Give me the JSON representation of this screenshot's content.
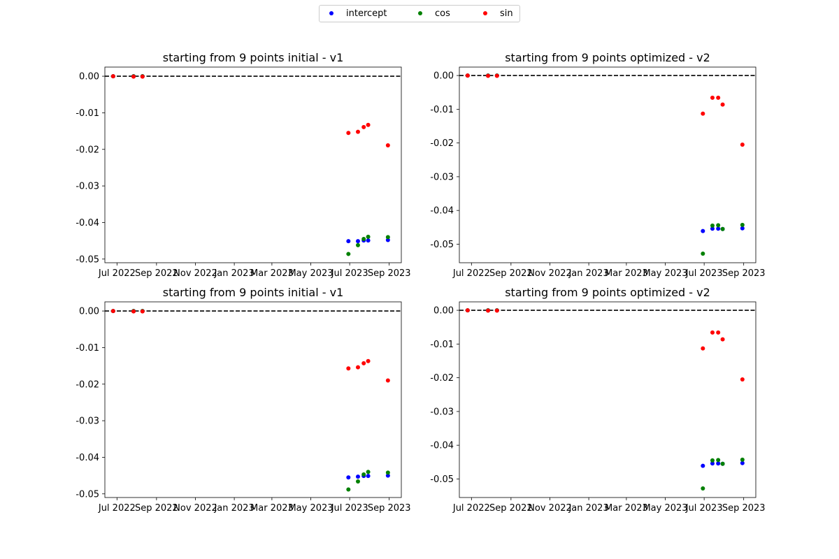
{
  "legend": {
    "placement": "top-center",
    "entries": [
      {
        "name": "intercept",
        "color": "#0000ff"
      },
      {
        "name": "cos",
        "color": "#008000"
      },
      {
        "name": "sin",
        "color": "#ff0000"
      }
    ]
  },
  "chart_data": [
    {
      "type": "scatter",
      "title": "starting from 9 points initial - v1",
      "xlabel": "",
      "ylabel": "",
      "x_ticks": [
        "Jul 2022",
        "Sep 2022",
        "Nov 2022",
        "Jan 2023",
        "Mar 2023",
        "May 2023",
        "Jul 2023",
        "Sep 2023"
      ],
      "x_range": [
        "2022-06-12",
        "2023-09-20"
      ],
      "ylim": [
        -0.051,
        0.0025
      ],
      "y_ticks": [
        "0.00",
        "-0.01",
        "-0.02",
        "-0.03",
        "-0.04",
        "-0.05"
      ],
      "reference_line": {
        "y": 0,
        "style": "dashed",
        "color": "#000000"
      },
      "grid": false,
      "series": [
        {
          "name": "intercept",
          "color": "#0000ff",
          "points": [
            [
              "2022-06-25",
              0
            ],
            [
              "2022-07-27",
              0
            ],
            [
              "2022-08-10",
              0
            ],
            [
              "2023-06-29",
              -0.0451
            ],
            [
              "2023-07-14",
              -0.0451
            ],
            [
              "2023-07-23",
              -0.0449
            ],
            [
              "2023-07-30",
              -0.0449
            ],
            [
              "2023-08-30",
              -0.0448
            ]
          ]
        },
        {
          "name": "cos",
          "color": "#008000",
          "points": [
            [
              "2022-06-25",
              0
            ],
            [
              "2022-07-27",
              0
            ],
            [
              "2022-08-10",
              0
            ],
            [
              "2023-06-29",
              -0.0486
            ],
            [
              "2023-07-14",
              -0.0462
            ],
            [
              "2023-07-23",
              -0.0445
            ],
            [
              "2023-07-30",
              -0.0439
            ],
            [
              "2023-08-30",
              -0.044
            ]
          ]
        },
        {
          "name": "sin",
          "color": "#ff0000",
          "points": [
            [
              "2022-06-25",
              0
            ],
            [
              "2022-07-27",
              -0.0001
            ],
            [
              "2022-08-10",
              -0.0001
            ],
            [
              "2023-06-29",
              -0.0155
            ],
            [
              "2023-07-14",
              -0.0152
            ],
            [
              "2023-07-23",
              -0.0139
            ],
            [
              "2023-07-30",
              -0.0133
            ],
            [
              "2023-08-30",
              -0.0189
            ]
          ]
        }
      ]
    },
    {
      "type": "scatter",
      "title": "starting from 9 points optimized - v2",
      "xlabel": "",
      "ylabel": "",
      "x_ticks": [
        "Jul 2022",
        "Sep 2022",
        "Nov 2022",
        "Jan 2023",
        "Mar 2023",
        "May 2023",
        "Jul 2023",
        "Sep 2023"
      ],
      "x_range": [
        "2022-06-12",
        "2023-09-20"
      ],
      "ylim": [
        -0.0555,
        0.0025
      ],
      "y_ticks": [
        "0.00",
        "-0.01",
        "-0.02",
        "-0.03",
        "-0.04",
        "-0.05"
      ],
      "reference_line": {
        "y": 0,
        "style": "dashed",
        "color": "#000000"
      },
      "grid": false,
      "series": [
        {
          "name": "intercept",
          "color": "#0000ff",
          "points": [
            [
              "2022-06-25",
              0
            ],
            [
              "2022-07-27",
              0
            ],
            [
              "2022-08-10",
              0
            ],
            [
              "2023-06-29",
              -0.0461
            ],
            [
              "2023-07-14",
              -0.0454
            ],
            [
              "2023-07-23",
              -0.0454
            ],
            [
              "2023-07-30",
              -0.0455
            ],
            [
              "2023-08-30",
              -0.0453
            ]
          ]
        },
        {
          "name": "cos",
          "color": "#008000",
          "points": [
            [
              "2022-06-25",
              0
            ],
            [
              "2022-07-27",
              0
            ],
            [
              "2022-08-10",
              0
            ],
            [
              "2023-06-29",
              -0.0528
            ],
            [
              "2023-07-14",
              -0.0445
            ],
            [
              "2023-07-23",
              -0.0444
            ],
            [
              "2023-07-30",
              -0.0455
            ],
            [
              "2023-08-30",
              -0.0443
            ]
          ]
        },
        {
          "name": "sin",
          "color": "#ff0000",
          "points": [
            [
              "2022-06-25",
              0
            ],
            [
              "2022-07-27",
              -0.0001
            ],
            [
              "2022-08-10",
              -0.0001
            ],
            [
              "2023-06-29",
              -0.0113
            ],
            [
              "2023-07-14",
              -0.0066
            ],
            [
              "2023-07-23",
              -0.0066
            ],
            [
              "2023-07-30",
              -0.0086
            ],
            [
              "2023-08-30",
              -0.0205
            ]
          ]
        }
      ]
    },
    {
      "type": "scatter",
      "title": "starting from 9 points initial - v1",
      "xlabel": "",
      "ylabel": "",
      "x_ticks": [
        "Jul 2022",
        "Sep 2022",
        "Nov 2022",
        "Jan 2023",
        "Mar 2023",
        "May 2023",
        "Jul 2023",
        "Sep 2023"
      ],
      "x_range": [
        "2022-06-12",
        "2023-09-20"
      ],
      "ylim": [
        -0.051,
        0.0025
      ],
      "y_ticks": [
        "0.00",
        "-0.01",
        "-0.02",
        "-0.03",
        "-0.04",
        "-0.05"
      ],
      "reference_line": {
        "y": 0,
        "style": "dashed",
        "color": "#000000"
      },
      "grid": false,
      "series": [
        {
          "name": "intercept",
          "color": "#0000ff",
          "points": [
            [
              "2022-06-25",
              0
            ],
            [
              "2022-07-27",
              0
            ],
            [
              "2022-08-10",
              0
            ],
            [
              "2023-06-29",
              -0.0455
            ],
            [
              "2023-07-14",
              -0.0453
            ],
            [
              "2023-07-23",
              -0.0451
            ],
            [
              "2023-07-30",
              -0.0451
            ],
            [
              "2023-08-30",
              -0.045
            ]
          ]
        },
        {
          "name": "cos",
          "color": "#008000",
          "points": [
            [
              "2022-06-25",
              0
            ],
            [
              "2022-07-27",
              0
            ],
            [
              "2022-08-10",
              0
            ],
            [
              "2023-06-29",
              -0.0488
            ],
            [
              "2023-07-14",
              -0.0466
            ],
            [
              "2023-07-23",
              -0.0447
            ],
            [
              "2023-07-30",
              -0.044
            ],
            [
              "2023-08-30",
              -0.0442
            ]
          ]
        },
        {
          "name": "sin",
          "color": "#ff0000",
          "points": [
            [
              "2022-06-25",
              0
            ],
            [
              "2022-07-27",
              -0.0001
            ],
            [
              "2022-08-10",
              -0.0001
            ],
            [
              "2023-06-29",
              -0.0157
            ],
            [
              "2023-07-14",
              -0.0154
            ],
            [
              "2023-07-23",
              -0.0143
            ],
            [
              "2023-07-30",
              -0.0137
            ],
            [
              "2023-08-30",
              -0.019
            ]
          ]
        }
      ]
    },
    {
      "type": "scatter",
      "title": "starting from 9 points optimized - v2",
      "xlabel": "",
      "ylabel": "",
      "x_ticks": [
        "Jul 2022",
        "Sep 2022",
        "Nov 2022",
        "Jan 2023",
        "Mar 2023",
        "May 2023",
        "Jul 2023",
        "Sep 2023"
      ],
      "x_range": [
        "2022-06-12",
        "2023-09-20"
      ],
      "ylim": [
        -0.0555,
        0.0025
      ],
      "y_ticks": [
        "0.00",
        "-0.01",
        "-0.02",
        "-0.03",
        "-0.04",
        "-0.05"
      ],
      "reference_line": {
        "y": 0,
        "style": "dashed",
        "color": "#000000"
      },
      "grid": false,
      "series": [
        {
          "name": "intercept",
          "color": "#0000ff",
          "points": [
            [
              "2022-06-25",
              0
            ],
            [
              "2022-07-27",
              0
            ],
            [
              "2022-08-10",
              0
            ],
            [
              "2023-06-29",
              -0.0461
            ],
            [
              "2023-07-14",
              -0.0454
            ],
            [
              "2023-07-23",
              -0.0454
            ],
            [
              "2023-07-30",
              -0.0455
            ],
            [
              "2023-08-30",
              -0.0453
            ]
          ]
        },
        {
          "name": "cos",
          "color": "#008000",
          "points": [
            [
              "2022-06-25",
              0
            ],
            [
              "2022-07-27",
              0
            ],
            [
              "2022-08-10",
              0
            ],
            [
              "2023-06-29",
              -0.0528
            ],
            [
              "2023-07-14",
              -0.0445
            ],
            [
              "2023-07-23",
              -0.0444
            ],
            [
              "2023-07-30",
              -0.0455
            ],
            [
              "2023-08-30",
              -0.0443
            ]
          ]
        },
        {
          "name": "sin",
          "color": "#ff0000",
          "points": [
            [
              "2022-06-25",
              0
            ],
            [
              "2022-07-27",
              -0.0001
            ],
            [
              "2022-08-10",
              -0.0001
            ],
            [
              "2023-06-29",
              -0.0113
            ],
            [
              "2023-07-14",
              -0.0066
            ],
            [
              "2023-07-23",
              -0.0066
            ],
            [
              "2023-07-30",
              -0.0086
            ],
            [
              "2023-08-30",
              -0.0205
            ]
          ]
        }
      ]
    }
  ]
}
